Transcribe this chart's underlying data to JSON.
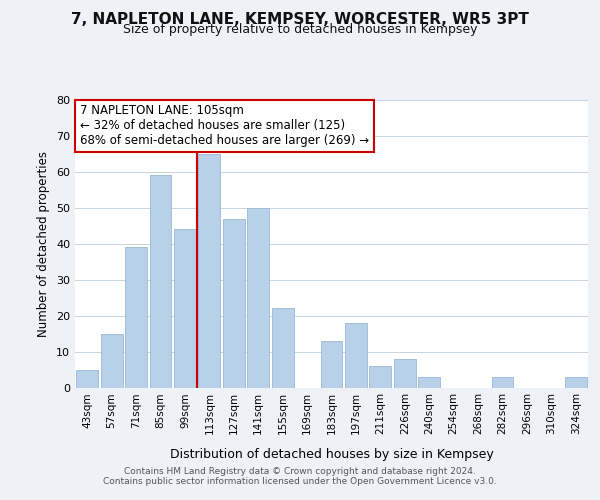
{
  "title": "7, NAPLETON LANE, KEMPSEY, WORCESTER, WR5 3PT",
  "subtitle": "Size of property relative to detached houses in Kempsey",
  "xlabel": "Distribution of detached houses by size in Kempsey",
  "ylabel": "Number of detached properties",
  "bar_color": "#b8d0e8",
  "bar_edge_color": "#9ab8d8",
  "background_color": "#eef2f7",
  "plot_bg_color": "#ffffff",
  "categories": [
    "43sqm",
    "57sqm",
    "71sqm",
    "85sqm",
    "99sqm",
    "113sqm",
    "127sqm",
    "141sqm",
    "155sqm",
    "169sqm",
    "183sqm",
    "197sqm",
    "211sqm",
    "226sqm",
    "240sqm",
    "254sqm",
    "268sqm",
    "282sqm",
    "296sqm",
    "310sqm",
    "324sqm"
  ],
  "values": [
    5,
    15,
    39,
    59,
    44,
    65,
    47,
    50,
    22,
    0,
    13,
    18,
    6,
    8,
    3,
    0,
    0,
    3,
    0,
    0,
    3
  ],
  "ylim": [
    0,
    80
  ],
  "yticks": [
    0,
    10,
    20,
    30,
    40,
    50,
    60,
    70,
    80
  ],
  "property_line_x": 4.5,
  "property_line_color": "#cc0000",
  "annotation_title": "7 NAPLETON LANE: 105sqm",
  "annotation_line1": "← 32% of detached houses are smaller (125)",
  "annotation_line2": "68% of semi-detached houses are larger (269) →",
  "annotation_box_color": "#ffffff",
  "annotation_border_color": "#cc0000",
  "footer1": "Contains HM Land Registry data © Crown copyright and database right 2024.",
  "footer2": "Contains public sector information licensed under the Open Government Licence v3.0."
}
